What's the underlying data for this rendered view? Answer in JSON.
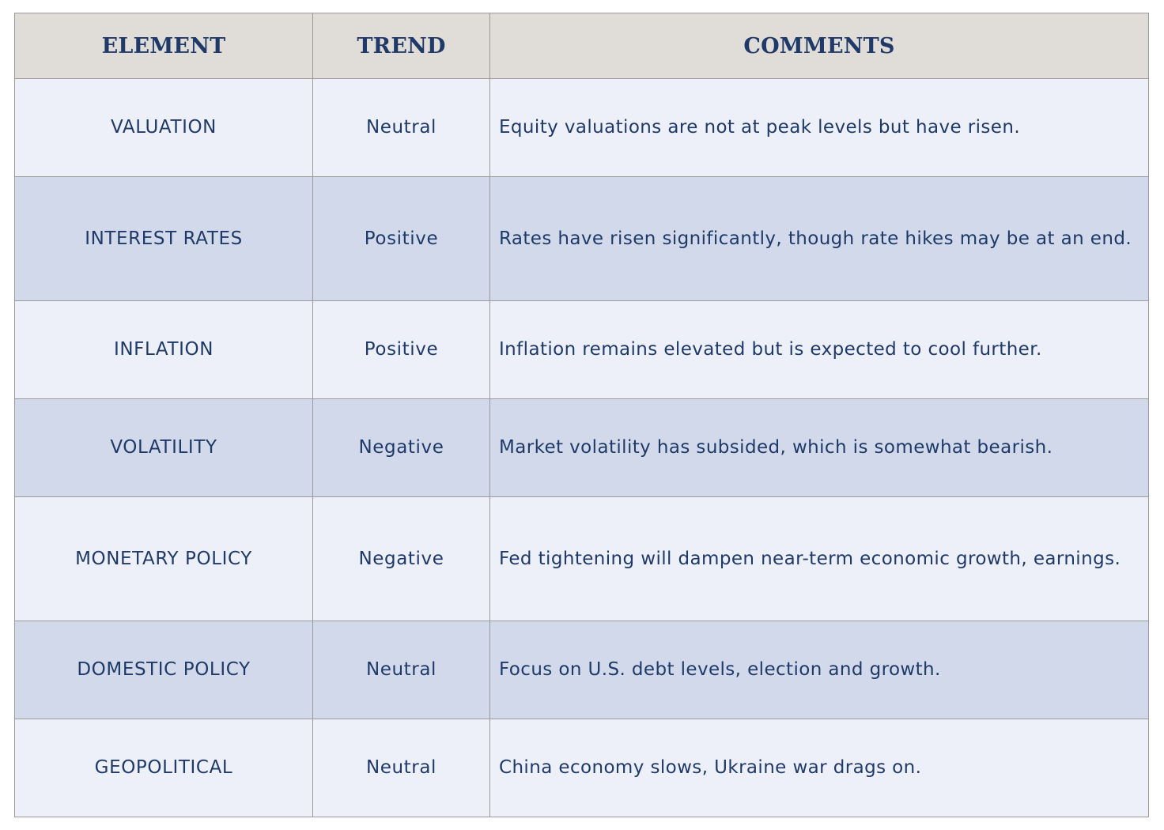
{
  "headers": {
    "element": "ELEMENT",
    "trend": "TREND",
    "comments": "COMMENTS"
  },
  "rows": [
    {
      "element": "VALUATION",
      "trend": "Neutral",
      "comment": "Equity valuations are not at peak levels but have risen."
    },
    {
      "element": "INTEREST RATES",
      "trend": "Positive",
      "comment": "Rates have risen significantly, though rate hikes may be at an end."
    },
    {
      "element": "INFLATION",
      "trend": "Positive",
      "comment": "Inflation remains elevated but is expected to cool further."
    },
    {
      "element": "VOLATILITY",
      "trend": "Negative",
      "comment": "Market volatility has subsided, which is somewhat bearish."
    },
    {
      "element": "MONETARY POLICY",
      "trend": "Negative",
      "comment": "Fed tightening will dampen near-term economic growth, earnings."
    },
    {
      "element": "DOMESTIC POLICY",
      "trend": "Neutral",
      "comment": "Focus on U.S. debt levels, election and growth."
    },
    {
      "element": "GEOPOLITICAL",
      "trend": "Neutral",
      "comment": "China economy slows, Ukraine war drags on."
    }
  ],
  "colors": {
    "header_bg": "#e0dcd7",
    "text": "#1f3a68",
    "row_light": "#edf0f8",
    "row_dark": "#d1d9ea",
    "border": "#9a9a9a"
  }
}
